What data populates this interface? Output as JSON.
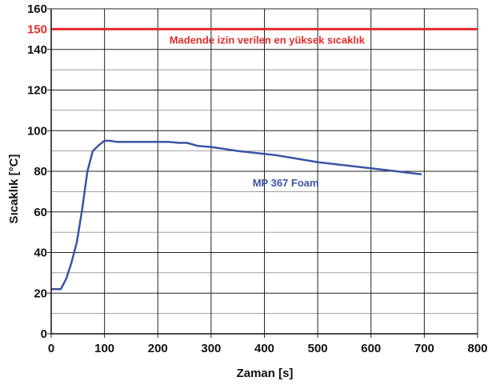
{
  "chart_data": {
    "type": "line",
    "xlabel": "Zaman [s]",
    "ylabel": "Sıcaklık [°C]",
    "xlim": [
      0,
      800
    ],
    "ylim": [
      0,
      160
    ],
    "x_ticks": [
      "0",
      "100",
      "200",
      "300",
      "400",
      "500",
      "600",
      "700",
      "800"
    ],
    "y_ticks": [
      "0",
      "20",
      "40",
      "60",
      "80",
      "100",
      "120",
      "140",
      "160"
    ],
    "grid": true,
    "series": [
      {
        "name": "MP 367 Foam",
        "color": "#3a55a4",
        "x": [
          0,
          18,
          28,
          38,
          48,
          58,
          68,
          78,
          90,
          100,
          110,
          122,
          135,
          160,
          200,
          220,
          240,
          255,
          275,
          300,
          350,
          420,
          500,
          600,
          695
        ],
        "y": [
          22,
          22,
          27,
          35,
          45,
          61,
          80,
          90,
          93,
          95,
          95,
          94.5,
          94.5,
          94.5,
          94.5,
          94.5,
          94,
          94,
          92.5,
          92,
          90,
          88,
          84.5,
          81.5,
          78.5
        ]
      }
    ],
    "reference_line": {
      "y": 150,
      "y_label": "150",
      "label": "Madende izin verilen en yüksek sıcaklık",
      "color": "#e32b2b"
    }
  }
}
